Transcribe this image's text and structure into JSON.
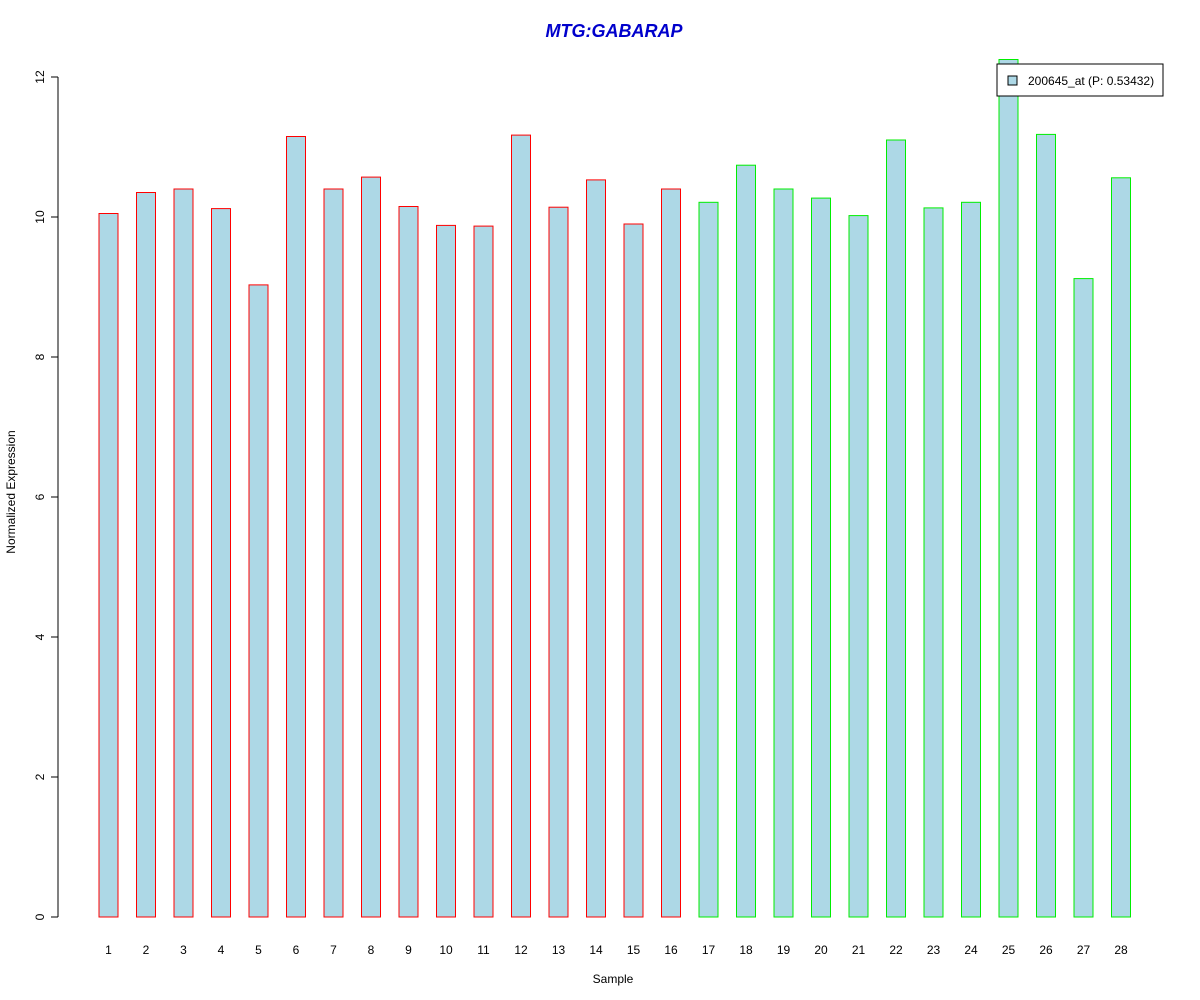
{
  "chart_data": {
    "type": "bar",
    "title": "MTG:GABARAP",
    "xlabel": "Sample",
    "ylabel": "Normalized Expression",
    "ylim": [
      0,
      12
    ],
    "yticks": [
      "0",
      "2",
      "4",
      "6",
      "8",
      "10",
      "12"
    ],
    "categories": [
      "1",
      "2",
      "3",
      "4",
      "5",
      "6",
      "7",
      "8",
      "9",
      "10",
      "11",
      "12",
      "13",
      "14",
      "15",
      "16",
      "17",
      "18",
      "19",
      "20",
      "21",
      "22",
      "23",
      "24",
      "25",
      "26",
      "27",
      "28"
    ],
    "values": [
      10.05,
      10.35,
      10.4,
      10.12,
      9.03,
      11.15,
      10.4,
      10.57,
      10.15,
      9.88,
      9.87,
      11.17,
      10.14,
      10.53,
      9.9,
      10.4,
      10.21,
      10.74,
      10.4,
      10.27,
      10.02,
      11.1,
      10.13,
      10.21,
      12.25,
      11.18,
      9.12,
      10.56
    ],
    "groups": [
      1,
      1,
      1,
      1,
      1,
      1,
      1,
      1,
      1,
      1,
      1,
      1,
      1,
      1,
      1,
      1,
      2,
      2,
      2,
      2,
      2,
      2,
      2,
      2,
      2,
      2,
      2,
      2
    ],
    "series": [
      {
        "name": "200645_at (P: 0.53432)"
      }
    ],
    "grid": false,
    "legend_position": "top-right"
  },
  "colors": {
    "title": "#0000cc",
    "bar_fill": "#add8e6",
    "group1_border": "#ff0000",
    "group2_border": "#00ee00",
    "axis": "#000000"
  }
}
